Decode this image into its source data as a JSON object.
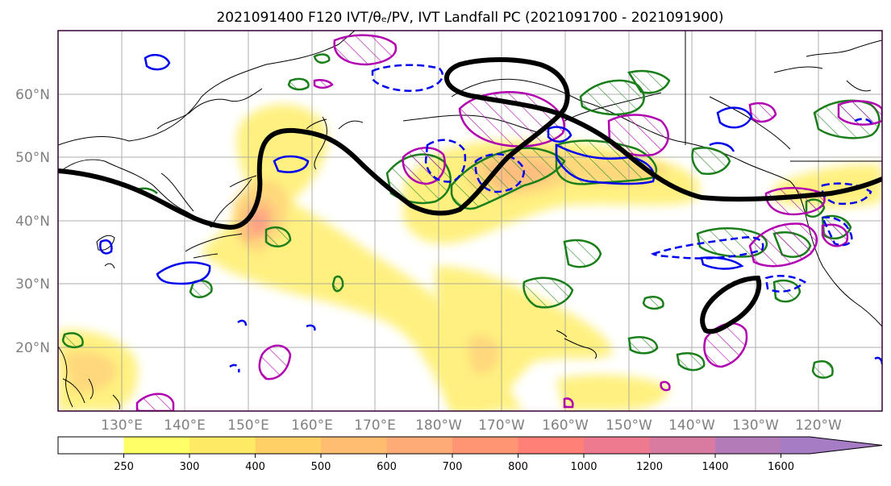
{
  "figure": {
    "title": "2021091400 F120 IVT/θₑ/PV, IVT Landfall PC (2021091700 - 2021091900)"
  },
  "map": {
    "projection": "PlateCarree",
    "lon_range": [
      120,
      250
    ],
    "lat_range": [
      10,
      70
    ],
    "lat_ticks": [
      {
        "value": 20,
        "label": "20°N"
      },
      {
        "value": 30,
        "label": "30°N"
      },
      {
        "value": 40,
        "label": "40°N"
      },
      {
        "value": 50,
        "label": "50°N"
      },
      {
        "value": 60,
        "label": "60°N"
      }
    ],
    "lon_ticks": [
      {
        "value": 130,
        "label": "130°E"
      },
      {
        "value": 140,
        "label": "140°E"
      },
      {
        "value": 150,
        "label": "150°E"
      },
      {
        "value": 160,
        "label": "160°E"
      },
      {
        "value": 170,
        "label": "170°E"
      },
      {
        "value": 180,
        "label": "180°W"
      },
      {
        "value": 190,
        "label": "170°W"
      },
      {
        "value": 200,
        "label": "160°W"
      },
      {
        "value": 210,
        "label": "150°W"
      },
      {
        "value": 220,
        "label": "140°W"
      },
      {
        "value": 230,
        "label": "130°W"
      },
      {
        "value": 240,
        "label": "120°W"
      }
    ],
    "gridlines": true,
    "colors": {
      "coastline": "#000000",
      "gridline": "#9a9a9a",
      "frame": "#330033",
      "landfall_pc": "#000000",
      "theta_e": "#1a7f1a",
      "pv_positive": "#b000b0",
      "pv_negative": "#0000ee"
    }
  },
  "colorbar": {
    "ticks": [
      "250",
      "300",
      "400",
      "500",
      "600",
      "700",
      "800",
      "1000",
      "1200",
      "1400",
      "1600"
    ],
    "colors": [
      "#ffffff",
      "#ffff66",
      "#ffea66",
      "#ffd066",
      "#ffbd70",
      "#ffab75",
      "#ff9572",
      "#ff8077",
      "#ee7a90",
      "#d97aa0",
      "#b37bb8",
      "#a67cc5"
    ],
    "extend": "max"
  }
}
